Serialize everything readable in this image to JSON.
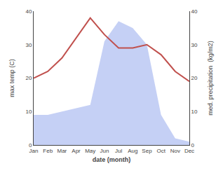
{
  "chart_data": {
    "type": "combo",
    "categories": [
      "Jan",
      "Feb",
      "Mar",
      "Apr",
      "May",
      "Jun",
      "Jul",
      "Aug",
      "Sep",
      "Oct",
      "Nov",
      "Dec"
    ],
    "xlabel": "date (month)",
    "ylabel": "max temp (C)",
    "y2label": "med. precipitation  (kg/m2)",
    "series": [
      {
        "type": "area",
        "axis": "y2",
        "color": "#c5d0f5",
        "values": [
          9,
          9,
          10,
          11,
          12,
          31,
          37,
          35,
          30,
          9,
          2,
          1
        ]
      },
      {
        "type": "line",
        "color": "#c0504d",
        "values": [
          20,
          22,
          26,
          32,
          38,
          33,
          29,
          29,
          30,
          27,
          22,
          19
        ]
      }
    ],
    "ylim": [
      0,
      40
    ],
    "yticks": [
      0,
      10,
      20,
      30,
      40
    ],
    "y2lim": [
      0,
      40
    ],
    "y2ticks": [
      0,
      10,
      20,
      30,
      40
    ],
    "grid": false
  }
}
